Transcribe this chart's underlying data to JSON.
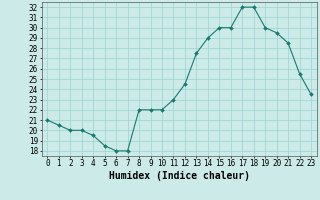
{
  "x": [
    0,
    1,
    2,
    3,
    4,
    5,
    6,
    7,
    8,
    9,
    10,
    11,
    12,
    13,
    14,
    15,
    16,
    17,
    18,
    19,
    20,
    21,
    22,
    23
  ],
  "y": [
    21,
    20.5,
    20,
    20,
    19.5,
    18.5,
    18,
    18,
    22,
    22,
    22,
    23,
    24.5,
    27.5,
    29,
    30,
    30,
    32,
    32,
    30,
    29.5,
    28.5,
    25.5,
    23.5
  ],
  "xlabel": "Humidex (Indice chaleur)",
  "xlim": [
    -0.5,
    23.5
  ],
  "ylim": [
    17.5,
    32.5
  ],
  "yticks": [
    18,
    19,
    20,
    21,
    22,
    23,
    24,
    25,
    26,
    27,
    28,
    29,
    30,
    31,
    32
  ],
  "xticks": [
    0,
    1,
    2,
    3,
    4,
    5,
    6,
    7,
    8,
    9,
    10,
    11,
    12,
    13,
    14,
    15,
    16,
    17,
    18,
    19,
    20,
    21,
    22,
    23
  ],
  "line_color": "#1a7a6e",
  "bg_color": "#cceae8",
  "grid_color": "#99d5d0",
  "tick_fontsize": 5.5,
  "xlabel_fontsize": 7
}
